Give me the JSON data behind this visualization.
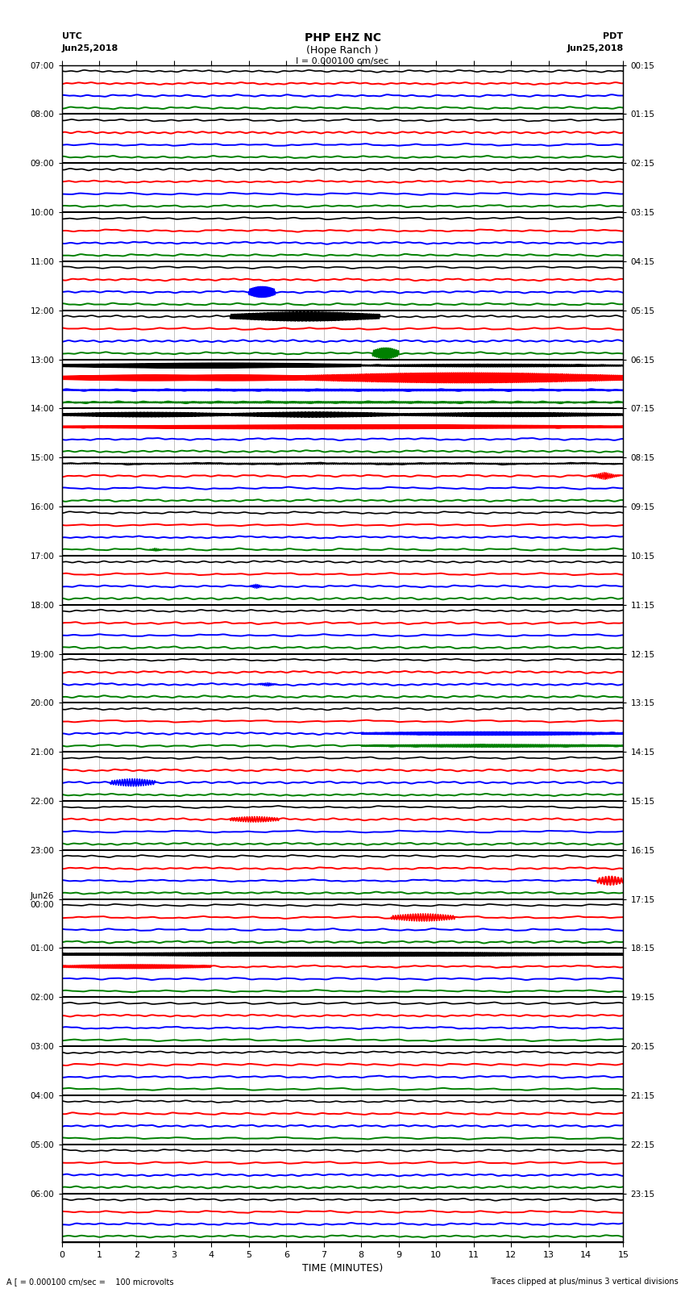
{
  "title_line1": "PHP EHZ NC",
  "title_line2": "(Hope Ranch )",
  "title_scale": "I = 0.000100 cm/sec",
  "left_label_line1": "UTC",
  "left_label_line2": "Jun25,2018",
  "right_label_line1": "PDT",
  "right_label_line2": "Jun25,2018",
  "xlabel": "TIME (MINUTES)",
  "footer_left": "A [ = 0.000100 cm/sec =    100 microvolts",
  "footer_right": "Traces clipped at plus/minus 3 vertical divisions",
  "xmin": 0,
  "xmax": 15,
  "bg_color": "#ffffff",
  "trace_color_order": [
    "black",
    "red",
    "blue",
    "green"
  ],
  "num_hours": 24,
  "traces_per_hour": 4,
  "utc_labels": [
    "07:00",
    "08:00",
    "09:00",
    "10:00",
    "11:00",
    "12:00",
    "13:00",
    "14:00",
    "15:00",
    "16:00",
    "17:00",
    "18:00",
    "19:00",
    "20:00",
    "21:00",
    "22:00",
    "23:00",
    "Jun26\n00:00",
    "01:00",
    "02:00",
    "03:00",
    "04:00",
    "05:00",
    "06:00"
  ],
  "pdt_labels": [
    "00:15",
    "01:15",
    "02:15",
    "03:15",
    "04:15",
    "05:15",
    "06:15",
    "07:15",
    "08:15",
    "09:15",
    "10:15",
    "11:15",
    "12:15",
    "13:15",
    "14:15",
    "15:15",
    "16:15",
    "17:15",
    "18:15",
    "19:15",
    "20:15",
    "21:15",
    "22:15",
    "23:15"
  ]
}
